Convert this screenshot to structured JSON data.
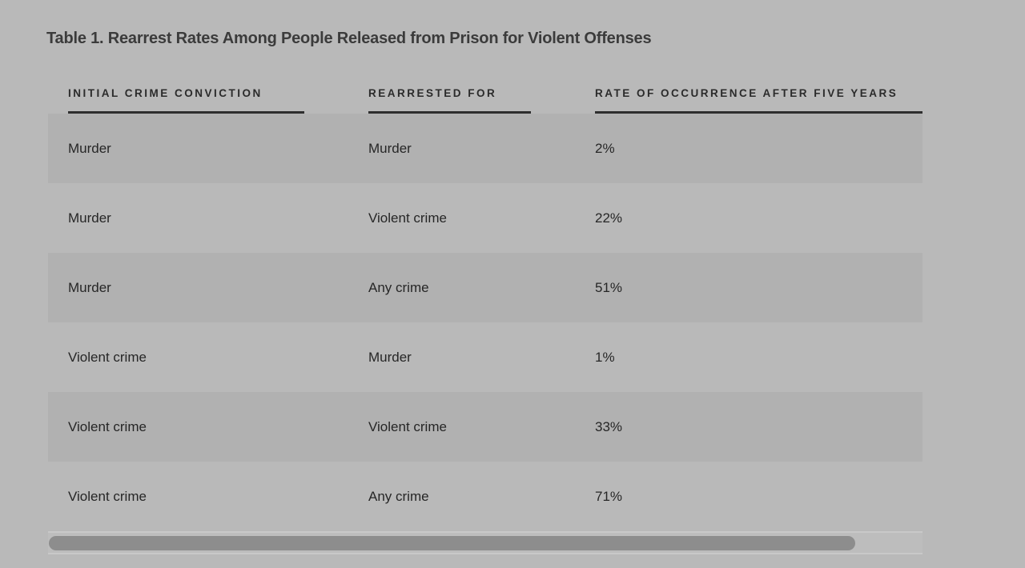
{
  "page": {
    "title": "Table 1. Rearrest Rates Among People Released from Prison for Violent Offenses"
  },
  "theme": {
    "page_background": "#b9b9b9",
    "row_stripe": "#b1b1b1",
    "header_text": "#2b2b2b",
    "header_underline": "#2e2e2e",
    "body_text": "#262626",
    "scrollbar_thumb": "#8d8d8d",
    "scrollbar_track": "#bdbdbd"
  },
  "table": {
    "columns": [
      "INITIAL CRIME CONVICTION",
      "REARRESTED FOR",
      "RATE OF OCCURRENCE AFTER FIVE YEARS"
    ],
    "rows": [
      [
        "Murder",
        "Murder",
        "2%"
      ],
      [
        "Murder",
        "Violent crime",
        "22%"
      ],
      [
        "Murder",
        "Any crime",
        "51%"
      ],
      [
        "Violent crime",
        "Murder",
        "1%"
      ],
      [
        "Violent crime",
        "Violent crime",
        "33%"
      ],
      [
        "Violent crime",
        "Any crime",
        "71%"
      ]
    ]
  },
  "chart_data": {
    "type": "table",
    "title": "Table 1. Rearrest Rates Among People Released from Prison for Violent Offenses",
    "columns": [
      "Initial crime conviction",
      "Rearrested for",
      "Rate of occurrence after five years"
    ],
    "rows": [
      {
        "initial_crime_conviction": "Murder",
        "rearrested_for": "Murder",
        "rate_pct": 2
      },
      {
        "initial_crime_conviction": "Murder",
        "rearrested_for": "Violent crime",
        "rate_pct": 22
      },
      {
        "initial_crime_conviction": "Murder",
        "rearrested_for": "Any crime",
        "rate_pct": 51
      },
      {
        "initial_crime_conviction": "Violent crime",
        "rearrested_for": "Murder",
        "rate_pct": 1
      },
      {
        "initial_crime_conviction": "Violent crime",
        "rearrested_for": "Violent crime",
        "rate_pct": 33
      },
      {
        "initial_crime_conviction": "Violent crime",
        "rearrested_for": "Any crime",
        "rate_pct": 71
      }
    ]
  }
}
